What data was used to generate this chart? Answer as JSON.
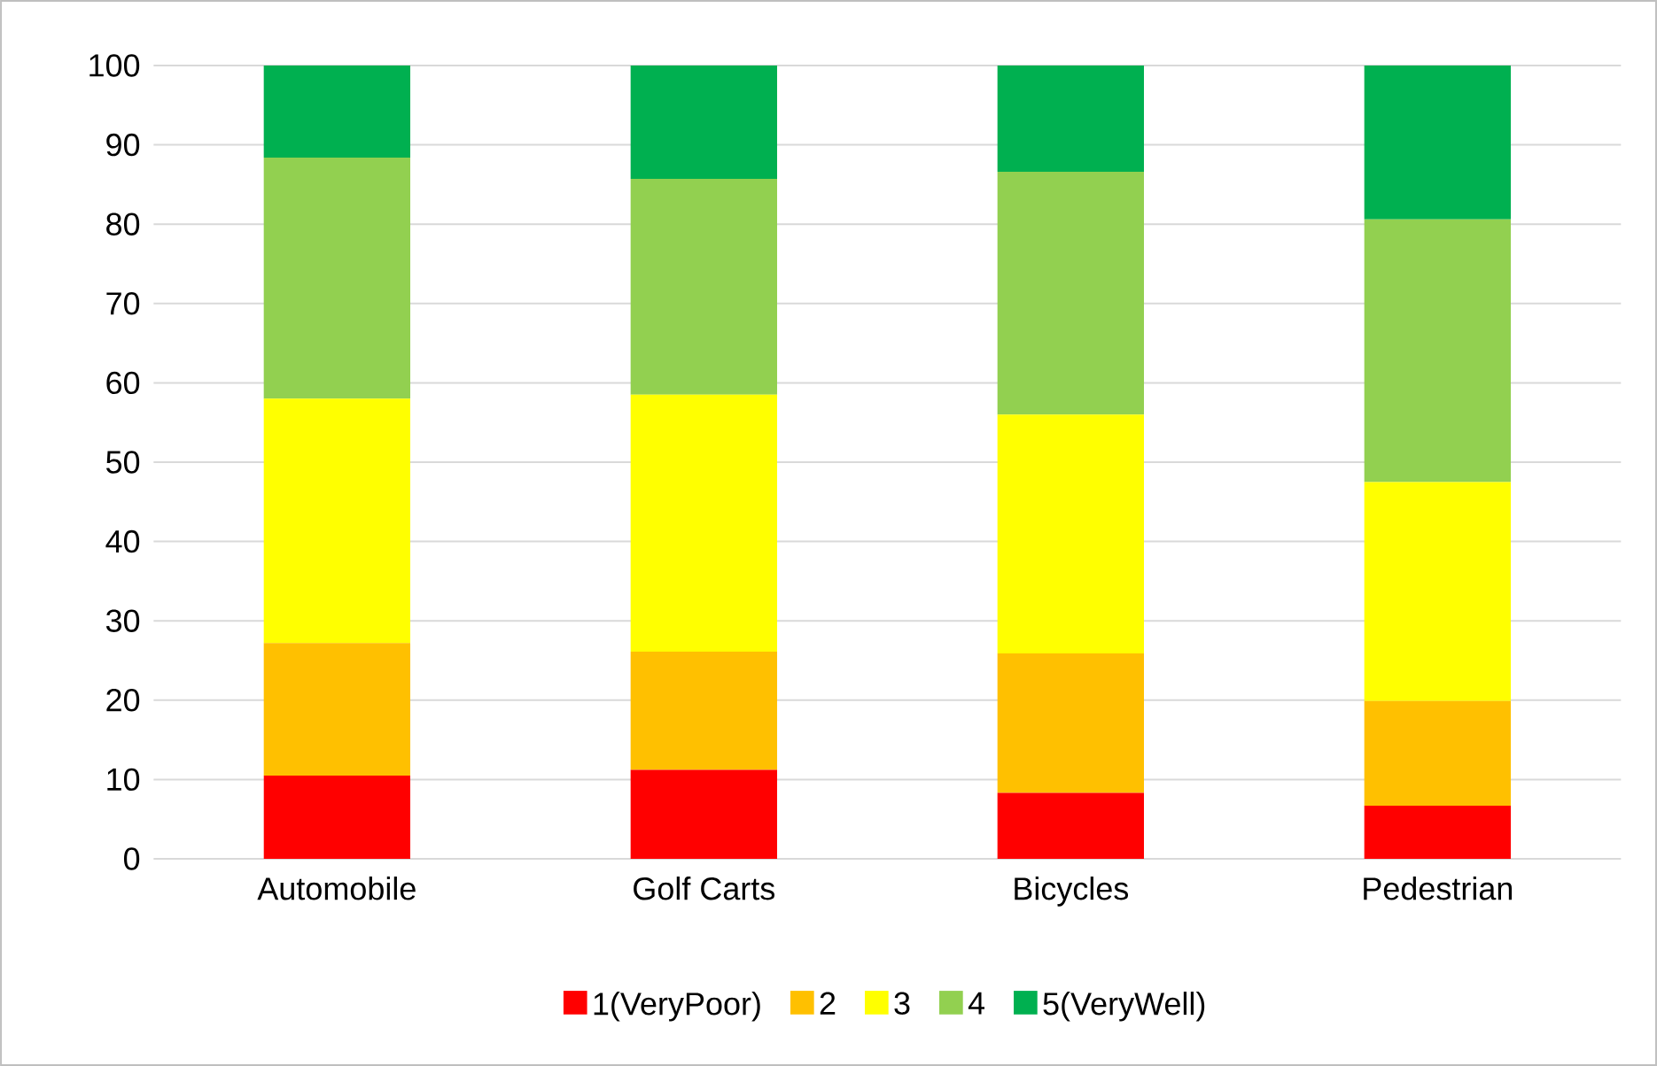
{
  "chart_data": {
    "type": "bar",
    "stacked": true,
    "categories": [
      "Automobile",
      "Golf Carts",
      "Bicycles",
      "Pedestrian"
    ],
    "series": [
      {
        "name": "1(VeryPoor)",
        "color": "#ff0000",
        "values": [
          10.5,
          11.2,
          8.3,
          6.7
        ]
      },
      {
        "name": "2",
        "color": "#ffc000",
        "values": [
          16.7,
          14.9,
          17.6,
          13.2
        ]
      },
      {
        "name": "3",
        "color": "#ffff00",
        "values": [
          30.8,
          32.4,
          30.1,
          27.6
        ]
      },
      {
        "name": "4",
        "color": "#92d050",
        "values": [
          30.4,
          27.2,
          30.6,
          33.1
        ]
      },
      {
        "name": "5(VeryWell)",
        "color": "#00b050",
        "values": [
          11.6,
          14.3,
          13.4,
          19.4
        ]
      }
    ],
    "ylim": [
      0,
      100
    ],
    "yticks": [
      0,
      10,
      20,
      30,
      40,
      50,
      60,
      70,
      80,
      90,
      100
    ],
    "grid": "y",
    "legend": "bottom"
  }
}
